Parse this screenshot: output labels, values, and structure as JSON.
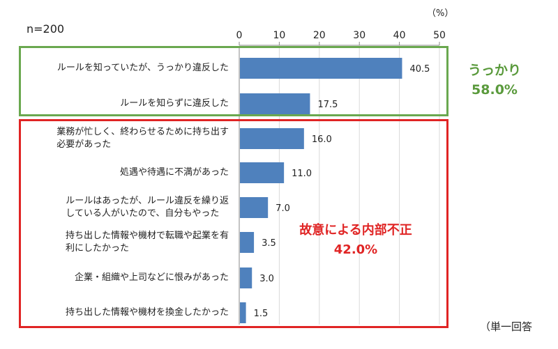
{
  "sample_label": "n=200",
  "unit_label": "（%）",
  "note": "（単一回答",
  "groups": [
    {
      "name": "うっかり",
      "total": "58.0%",
      "color": "#6aa84f"
    },
    {
      "name": "故意による内部不正",
      "total": "42.0%",
      "color": "#e02424"
    }
  ],
  "chart_data": {
    "type": "bar",
    "orientation": "horizontal",
    "xlim": [
      0,
      50
    ],
    "xticks": [
      0,
      10,
      20,
      30,
      40,
      50
    ],
    "bar_color": "#4f81bd",
    "categories": [
      "ルールを知っていたが、うっかり違反した",
      "ルールを知らずに違反した",
      "業務が忙しく、終わらせるために持ち出す必要があった",
      "処遇や待遇に不満があった",
      "ルールはあったが、ルール違反を繰り返している人がいたので、自分もやった",
      "持ち出した情報や機材で転職や起業を有利にしたかった",
      "企業・組織や上司などに恨みがあった",
      "持ち出した情報や機材を換金したかった"
    ],
    "category_lines": [
      [
        "ルールを知っていたが、うっかり違反した"
      ],
      [
        "ルールを知らずに違反した"
      ],
      [
        "業務が忙しく、終わらせるために持ち出す",
        "必要があった"
      ],
      [
        "処遇や待遇に不満があった"
      ],
      [
        "ルールはあったが、ルール違反を繰り返",
        "している人がいたので、自分もやった"
      ],
      [
        "持ち出した情報や機材で転職や起業を有",
        "利にしたかった"
      ],
      [
        "企業・組織や上司などに恨みがあった"
      ],
      [
        "持ち出した情報や機材を換金したかった"
      ]
    ],
    "values": [
      40.5,
      17.5,
      16.0,
      11.0,
      7.0,
      3.5,
      3.0,
      1.5
    ],
    "value_labels": [
      "40.5",
      "17.5",
      "16.0",
      "11.0",
      "7.0",
      "3.5",
      "3.0",
      "1.5"
    ],
    "grid": true
  }
}
